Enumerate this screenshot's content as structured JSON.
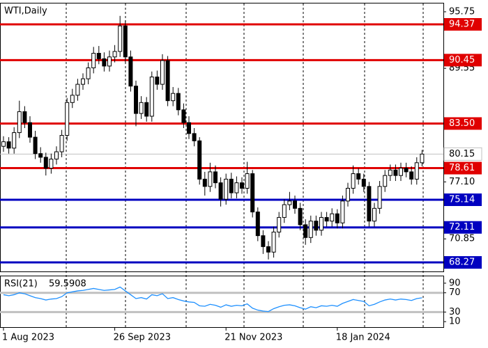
{
  "chart_data": {
    "type": "candlestick",
    "title": "WTI,Daily",
    "categories": [
      "1 Aug 2023",
      null,
      null,
      null,
      null,
      null,
      null,
      null,
      null,
      null,
      null,
      null,
      null,
      null,
      null,
      null,
      null,
      null,
      null,
      null,
      null,
      "26 Sep 2023",
      null,
      null,
      null,
      null,
      null,
      null,
      null,
      null,
      null,
      null,
      null,
      null,
      null,
      null,
      null,
      null,
      null,
      null,
      null,
      null,
      "21 Nov 2023",
      null,
      null,
      null,
      null,
      null,
      null,
      null,
      null,
      null,
      null,
      null,
      null,
      null,
      null,
      null,
      null,
      null,
      null,
      null,
      null,
      "18 Jan 2024",
      null,
      null,
      null,
      null,
      null,
      null,
      null,
      null,
      null,
      null,
      null,
      null,
      null,
      null,
      null,
      null
    ],
    "open": [
      81.0,
      81.5,
      80.8,
      82.5,
      84.8,
      83.6,
      82.0,
      80.2,
      79.8,
      78.6,
      79.6,
      80.4,
      82.2,
      85.8,
      86.6,
      87.8,
      88.4,
      89.6,
      91.2,
      90.6,
      89.8,
      90.8,
      91.4,
      94.2,
      90.8,
      87.6,
      84.6,
      85.8,
      84.3,
      88.6,
      87.8,
      90.4,
      86.0,
      86.8,
      85.0,
      83.6,
      82.4,
      81.6,
      77.4,
      76.6,
      78.2,
      77.0,
      75.2,
      77.4,
      75.9,
      77.0,
      76.4,
      78.0,
      73.8,
      71.2,
      70.0,
      69.4,
      71.6,
      73.2,
      74.6,
      75.0,
      74.2,
      72.4,
      71.0,
      72.8,
      71.8,
      73.2,
      72.8,
      73.6,
      72.6,
      75.0,
      76.4,
      78.0,
      77.4,
      76.6,
      72.8,
      74.2,
      76.6,
      77.8,
      78.4,
      77.8,
      78.6,
      78.2,
      77.4,
      79.2
    ],
    "high": [
      82.1,
      82.0,
      83.1,
      86.0,
      85.4,
      84.3,
      82.7,
      80.9,
      80.3,
      80.2,
      81.0,
      82.8,
      86.3,
      87.3,
      88.4,
      89.0,
      90.2,
      91.9,
      92.0,
      91.3,
      91.5,
      92.1,
      95.3,
      94.8,
      91.5,
      88.2,
      86.5,
      86.4,
      89.2,
      89.3,
      91.1,
      90.9,
      87.5,
      87.4,
      85.7,
      84.3,
      83.0,
      82.0,
      78.2,
      79.2,
      78.9,
      77.6,
      78.0,
      78.1,
      77.7,
      77.6,
      79.3,
      78.4,
      74.3,
      71.8,
      70.6,
      72.2,
      73.8,
      75.2,
      76.0,
      75.6,
      74.8,
      73.0,
      73.4,
      73.4,
      73.8,
      73.8,
      74.2,
      74.1,
      75.6,
      77.0,
      78.9,
      78.6,
      78.0,
      77.1,
      74.8,
      77.2,
      78.4,
      79.0,
      79.0,
      79.2,
      79.2,
      78.8,
      79.8,
      80.6
    ],
    "low": [
      80.4,
      80.2,
      80.2,
      81.9,
      83.0,
      81.4,
      79.6,
      79.2,
      77.8,
      78.0,
      79.0,
      79.8,
      81.6,
      85.2,
      86.0,
      87.2,
      87.8,
      89.0,
      90.0,
      89.2,
      89.2,
      90.2,
      90.8,
      90.2,
      87.0,
      83.2,
      84.0,
      83.7,
      83.7,
      87.2,
      87.2,
      85.4,
      85.4,
      84.4,
      83.0,
      81.8,
      81.0,
      76.8,
      75.6,
      76.0,
      76.4,
      74.4,
      74.6,
      75.3,
      75.3,
      75.8,
      75.8,
      73.2,
      70.6,
      69.2,
      68.6,
      68.8,
      71.0,
      72.6,
      74.0,
      73.6,
      71.8,
      70.2,
      70.4,
      71.2,
      71.2,
      72.2,
      72.2,
      72.0,
      72.0,
      74.4,
      75.8,
      76.8,
      76.0,
      72.2,
      72.2,
      73.6,
      76.0,
      77.2,
      77.2,
      77.2,
      77.6,
      76.8,
      76.8,
      78.8
    ],
    "close": [
      81.5,
      80.8,
      82.5,
      84.8,
      83.6,
      82.0,
      80.2,
      79.8,
      78.6,
      79.6,
      80.4,
      82.2,
      85.8,
      86.6,
      87.8,
      88.4,
      89.6,
      91.2,
      90.6,
      89.8,
      90.8,
      91.4,
      94.2,
      90.8,
      87.6,
      84.6,
      85.8,
      84.3,
      88.6,
      87.8,
      90.4,
      86.0,
      86.8,
      85.0,
      83.6,
      82.4,
      81.6,
      77.4,
      76.6,
      78.2,
      77.0,
      75.2,
      77.4,
      75.9,
      77.0,
      76.4,
      78.0,
      73.8,
      71.2,
      70.0,
      69.4,
      71.6,
      73.2,
      74.6,
      75.0,
      74.2,
      72.4,
      71.0,
      72.8,
      71.8,
      73.2,
      72.8,
      73.6,
      72.6,
      75.0,
      76.4,
      78.0,
      77.4,
      76.6,
      72.8,
      74.2,
      76.6,
      77.8,
      78.4,
      77.8,
      78.6,
      78.2,
      77.4,
      79.2,
      80.15
    ],
    "ylim": [
      67.28,
      96.66
    ],
    "yticks": [
      95.75,
      89.55,
      {
        "value": 77.1,
        "label": "77.10"
      },
      70.85
    ],
    "levels": [
      {
        "value": 94.37,
        "color": "#e00000"
      },
      {
        "value": 90.45,
        "color": "#e00000"
      },
      {
        "value": 83.5,
        "label": "83.50",
        "color": "#e00000"
      },
      {
        "value": 78.61,
        "color": "#e00000"
      },
      {
        "value": 75.14,
        "color": "#0000c0"
      },
      {
        "value": 72.11,
        "color": "#0000c0"
      },
      {
        "value": 68.27,
        "color": "#0000c0"
      }
    ],
    "rsi": {
      "title": "RSI(21)",
      "color": "#1e90ff",
      "values": [
        66,
        64,
        66,
        70,
        68,
        64,
        60,
        58,
        55,
        57,
        58,
        62,
        70,
        72,
        74,
        75,
        77,
        79,
        77,
        75,
        76,
        77,
        82,
        74,
        66,
        58,
        60,
        57,
        66,
        64,
        68,
        58,
        60,
        56,
        53,
        51,
        50,
        43,
        42,
        46,
        44,
        40,
        45,
        42,
        44,
        43,
        47,
        38,
        34,
        32,
        31,
        37,
        41,
        44,
        45,
        43,
        39,
        36,
        41,
        39,
        43,
        42,
        44,
        42,
        48,
        52,
        56,
        54,
        52,
        43,
        46,
        51,
        55,
        57,
        55,
        57,
        56,
        54,
        58,
        59.5908
      ],
      "ylim": [
        -1.4,
        104.3
      ],
      "yticks": [
        90,
        70,
        30,
        10
      ],
      "levels": [
        70,
        30
      ]
    }
  }
}
